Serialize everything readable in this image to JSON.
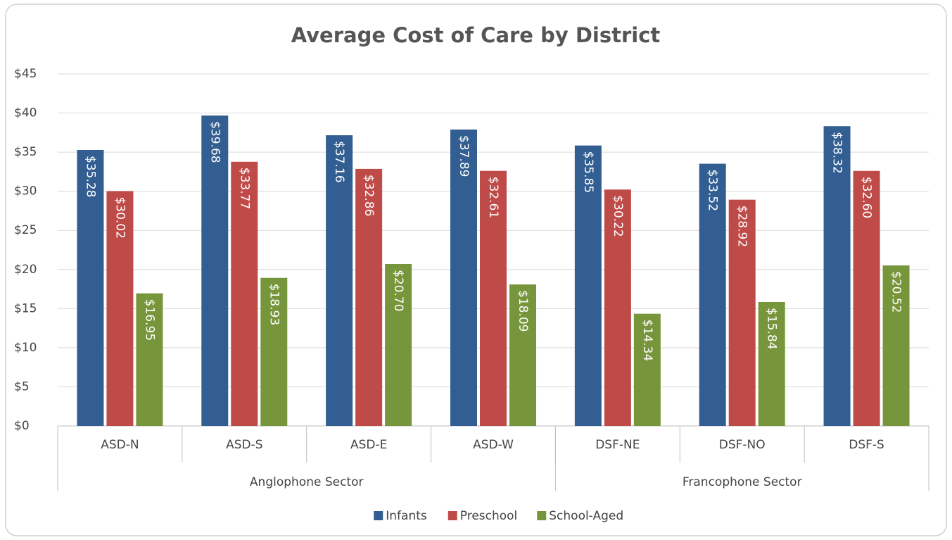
{
  "chart_data": {
    "type": "bar",
    "title": "Average Cost of Care by District",
    "categories": [
      "ASD-N",
      "ASD-S",
      "ASD-E",
      "ASD-W",
      "DSF-NE",
      "DSF-NO",
      "DSF-S"
    ],
    "groups": [
      {
        "name": "Anglophone Sector",
        "size": 4
      },
      {
        "name": "Francophone Sector",
        "size": 3
      }
    ],
    "series": [
      {
        "name": "Infants",
        "color": "#325e92",
        "values": [
          35.28,
          39.68,
          37.16,
          37.89,
          35.85,
          33.52,
          38.32
        ],
        "value_labels": [
          "$35.28",
          "$39.68",
          "$37.16",
          "$37.89",
          "$35.85",
          "$33.52",
          "$38.32"
        ]
      },
      {
        "name": "Preschool",
        "color": "#be4b48",
        "values": [
          30.02,
          33.77,
          32.86,
          32.61,
          30.22,
          28.92,
          32.6
        ],
        "value_labels": [
          "$30.02",
          "$33.77",
          "$32.86",
          "$32.61",
          "$30.22",
          "$28.92",
          "$32.60"
        ]
      },
      {
        "name": "School-Aged",
        "color": "#77963b",
        "values": [
          16.95,
          18.93,
          20.7,
          18.09,
          14.34,
          15.84,
          20.52
        ],
        "value_labels": [
          "$16.95",
          "$18.93",
          "$20.70",
          "$18.09",
          "$14.34",
          "$15.84",
          "$20.52"
        ]
      }
    ],
    "ylim": [
      0,
      45
    ],
    "yticks": [
      {
        "value": 0,
        "label": "$0"
      },
      {
        "value": 5,
        "label": "$5"
      },
      {
        "value": 10,
        "label": "$10"
      },
      {
        "value": 15,
        "label": "$15"
      },
      {
        "value": 20,
        "label": "$20"
      },
      {
        "value": 25,
        "label": "$25"
      },
      {
        "value": 30,
        "label": "$30"
      },
      {
        "value": 35,
        "label": "$35"
      },
      {
        "value": 40,
        "label": "$40"
      },
      {
        "value": 45,
        "label": "$45"
      }
    ],
    "grid": true,
    "legend": "bottom"
  }
}
